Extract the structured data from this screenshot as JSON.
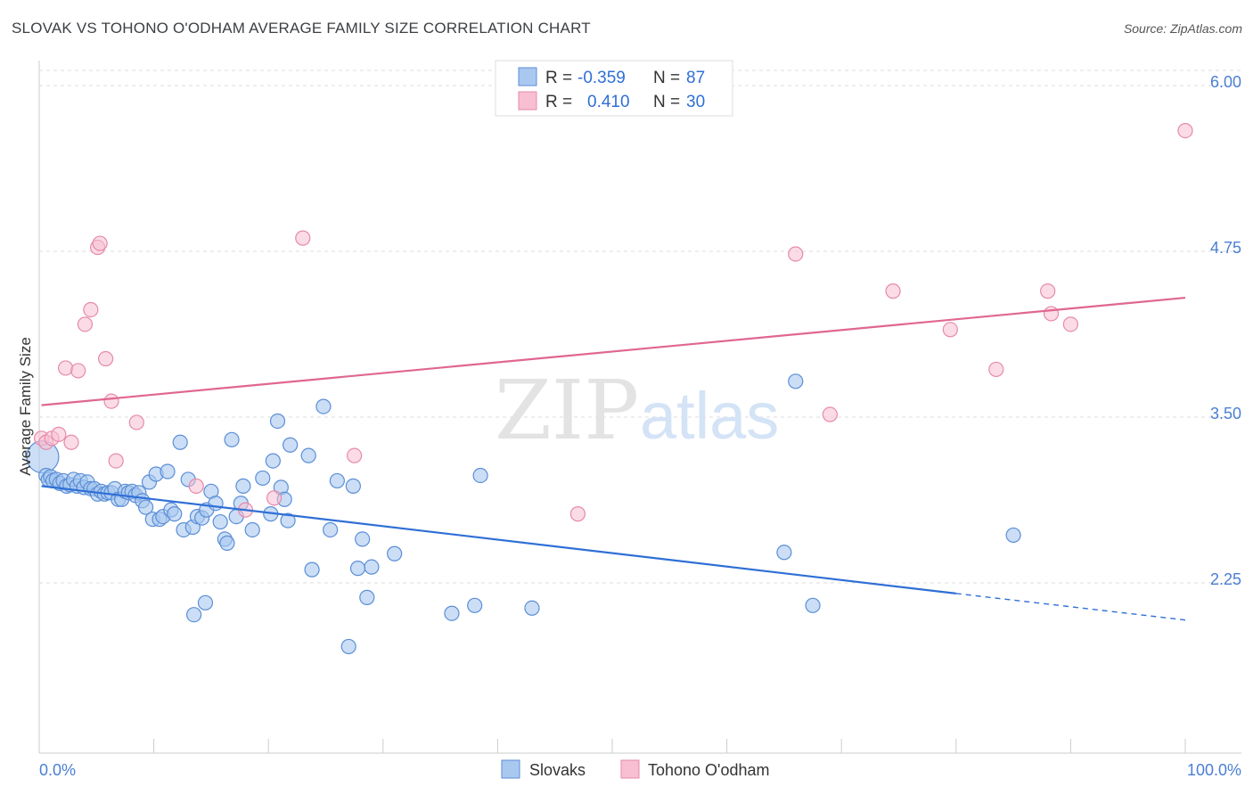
{
  "header": {
    "title": "SLOVAK VS TOHONO O'ODHAM AVERAGE FAMILY SIZE CORRELATION CHART",
    "source": "Source: ZipAtlas.com"
  },
  "watermark": {
    "zip": "ZIP",
    "atlas": "atlas"
  },
  "legend_top": {
    "r_label": "R =",
    "n_label": "N =",
    "rows": [
      {
        "r": "-0.359",
        "n": "87"
      },
      {
        "r": "0.410",
        "n": "30"
      }
    ]
  },
  "legend_bottom": [
    "Slovaks",
    "Tohono O'odham"
  ],
  "colors": {
    "slovak_fill": "#a9c8f0",
    "slovak_stroke": "#5b8ed6",
    "slovak_line": "#2f6fd6",
    "tohono_fill": "#f8bfd2",
    "tohono_stroke": "#e68aaa",
    "tohono_line": "#e06692",
    "tick_text": "#4a7fd4",
    "grid": "#dddddd"
  },
  "chart_data": {
    "type": "scatter",
    "title": "SLOVAK VS TOHONO O'ODHAM AVERAGE FAMILY SIZE CORRELATION CHART",
    "xlabel": "",
    "ylabel": "Average Family Size",
    "xlim": [
      0,
      100
    ],
    "ylim": [
      1.0,
      6.15
    ],
    "x_tick_labels": [
      "0.0%",
      "100.0%"
    ],
    "y_ticks": [
      2.25,
      3.5,
      4.75,
      6.0
    ],
    "y_tick_labels": [
      "2.25",
      "3.50",
      "4.75",
      "6.00"
    ],
    "grid": "horizontal dashed",
    "legend_position": "top-center and bottom-center",
    "series": [
      {
        "name": "Slovaks",
        "r": -0.359,
        "n": 87,
        "trend": {
          "x0": 0.2,
          "y0": 2.98,
          "x1": 80,
          "y1": 2.17,
          "dash_to_x": 100,
          "dash_to_y": 1.97
        },
        "points": [
          [
            0.3,
            3.2
          ],
          [
            0.6,
            3.06
          ],
          [
            0.8,
            3.03
          ],
          [
            1.0,
            3.05
          ],
          [
            1.2,
            3.02
          ],
          [
            1.5,
            3.03
          ],
          [
            1.8,
            3.0
          ],
          [
            2.1,
            3.02
          ],
          [
            2.4,
            2.98
          ],
          [
            2.7,
            2.99
          ],
          [
            3.0,
            3.03
          ],
          [
            3.3,
            2.98
          ],
          [
            3.6,
            3.02
          ],
          [
            3.9,
            2.97
          ],
          [
            4.2,
            3.01
          ],
          [
            4.5,
            2.96
          ],
          [
            4.8,
            2.96
          ],
          [
            5.1,
            2.92
          ],
          [
            5.4,
            2.94
          ],
          [
            5.7,
            2.92
          ],
          [
            6.0,
            2.93
          ],
          [
            6.3,
            2.93
          ],
          [
            6.6,
            2.96
          ],
          [
            6.9,
            2.88
          ],
          [
            7.2,
            2.88
          ],
          [
            7.5,
            2.94
          ],
          [
            7.8,
            2.93
          ],
          [
            8.1,
            2.94
          ],
          [
            8.4,
            2.91
          ],
          [
            8.7,
            2.93
          ],
          [
            9.0,
            2.87
          ],
          [
            9.3,
            2.82
          ],
          [
            9.6,
            3.01
          ],
          [
            9.9,
            2.73
          ],
          [
            10.2,
            3.07
          ],
          [
            10.5,
            2.73
          ],
          [
            10.8,
            2.75
          ],
          [
            11.2,
            3.09
          ],
          [
            11.5,
            2.8
          ],
          [
            11.8,
            2.77
          ],
          [
            12.3,
            3.31
          ],
          [
            12.6,
            2.65
          ],
          [
            13.0,
            3.03
          ],
          [
            13.4,
            2.67
          ],
          [
            13.8,
            2.75
          ],
          [
            14.2,
            2.74
          ],
          [
            14.6,
            2.8
          ],
          [
            15.0,
            2.94
          ],
          [
            15.4,
            2.85
          ],
          [
            15.8,
            2.71
          ],
          [
            16.2,
            2.58
          ],
          [
            16.4,
            2.55
          ],
          [
            16.8,
            3.33
          ],
          [
            17.2,
            2.75
          ],
          [
            17.6,
            2.85
          ],
          [
            17.8,
            2.98
          ],
          [
            18.6,
            2.65
          ],
          [
            19.5,
            3.04
          ],
          [
            20.2,
            2.77
          ],
          [
            20.4,
            3.17
          ],
          [
            20.8,
            3.47
          ],
          [
            21.1,
            2.97
          ],
          [
            21.4,
            2.88
          ],
          [
            21.7,
            2.72
          ],
          [
            21.9,
            3.29
          ],
          [
            23.5,
            3.21
          ],
          [
            23.8,
            2.35
          ],
          [
            24.8,
            3.58
          ],
          [
            25.4,
            2.65
          ],
          [
            26.0,
            3.02
          ],
          [
            27.0,
            1.77
          ],
          [
            27.4,
            2.98
          ],
          [
            28.2,
            2.58
          ],
          [
            28.6,
            2.14
          ],
          [
            29.0,
            2.37
          ],
          [
            31.0,
            2.47
          ],
          [
            36.0,
            2.02
          ],
          [
            38.0,
            2.08
          ],
          [
            38.5,
            3.06
          ],
          [
            43.0,
            2.06
          ],
          [
            65.0,
            2.48
          ],
          [
            66.0,
            3.77
          ],
          [
            67.5,
            2.08
          ],
          [
            85.0,
            2.61
          ],
          [
            13.5,
            2.01
          ],
          [
            14.5,
            2.1
          ],
          [
            27.8,
            2.36
          ]
        ]
      },
      {
        "name": "Tohono O'odham",
        "r": 0.41,
        "n": 30,
        "trend": {
          "x0": 0.2,
          "y0": 3.59,
          "x1": 100,
          "y1": 4.4
        },
        "points": [
          [
            0.2,
            3.34
          ],
          [
            0.6,
            3.31
          ],
          [
            1.1,
            3.34
          ],
          [
            1.7,
            3.37
          ],
          [
            2.3,
            3.87
          ],
          [
            2.8,
            3.31
          ],
          [
            3.4,
            3.85
          ],
          [
            4.0,
            4.2
          ],
          [
            4.5,
            4.31
          ],
          [
            5.1,
            4.78
          ],
          [
            5.3,
            4.81
          ],
          [
            5.8,
            3.94
          ],
          [
            6.3,
            3.62
          ],
          [
            6.7,
            3.17
          ],
          [
            8.5,
            3.46
          ],
          [
            13.7,
            2.98
          ],
          [
            18.0,
            2.8
          ],
          [
            20.5,
            2.89
          ],
          [
            23.0,
            4.85
          ],
          [
            27.5,
            3.21
          ],
          [
            47.0,
            2.77
          ],
          [
            66.0,
            4.73
          ],
          [
            69.0,
            3.52
          ],
          [
            74.5,
            4.45
          ],
          [
            79.5,
            4.16
          ],
          [
            83.5,
            3.86
          ],
          [
            88.0,
            4.45
          ],
          [
            88.3,
            4.28
          ],
          [
            90.0,
            4.2
          ],
          [
            100.0,
            5.66
          ]
        ]
      }
    ]
  }
}
